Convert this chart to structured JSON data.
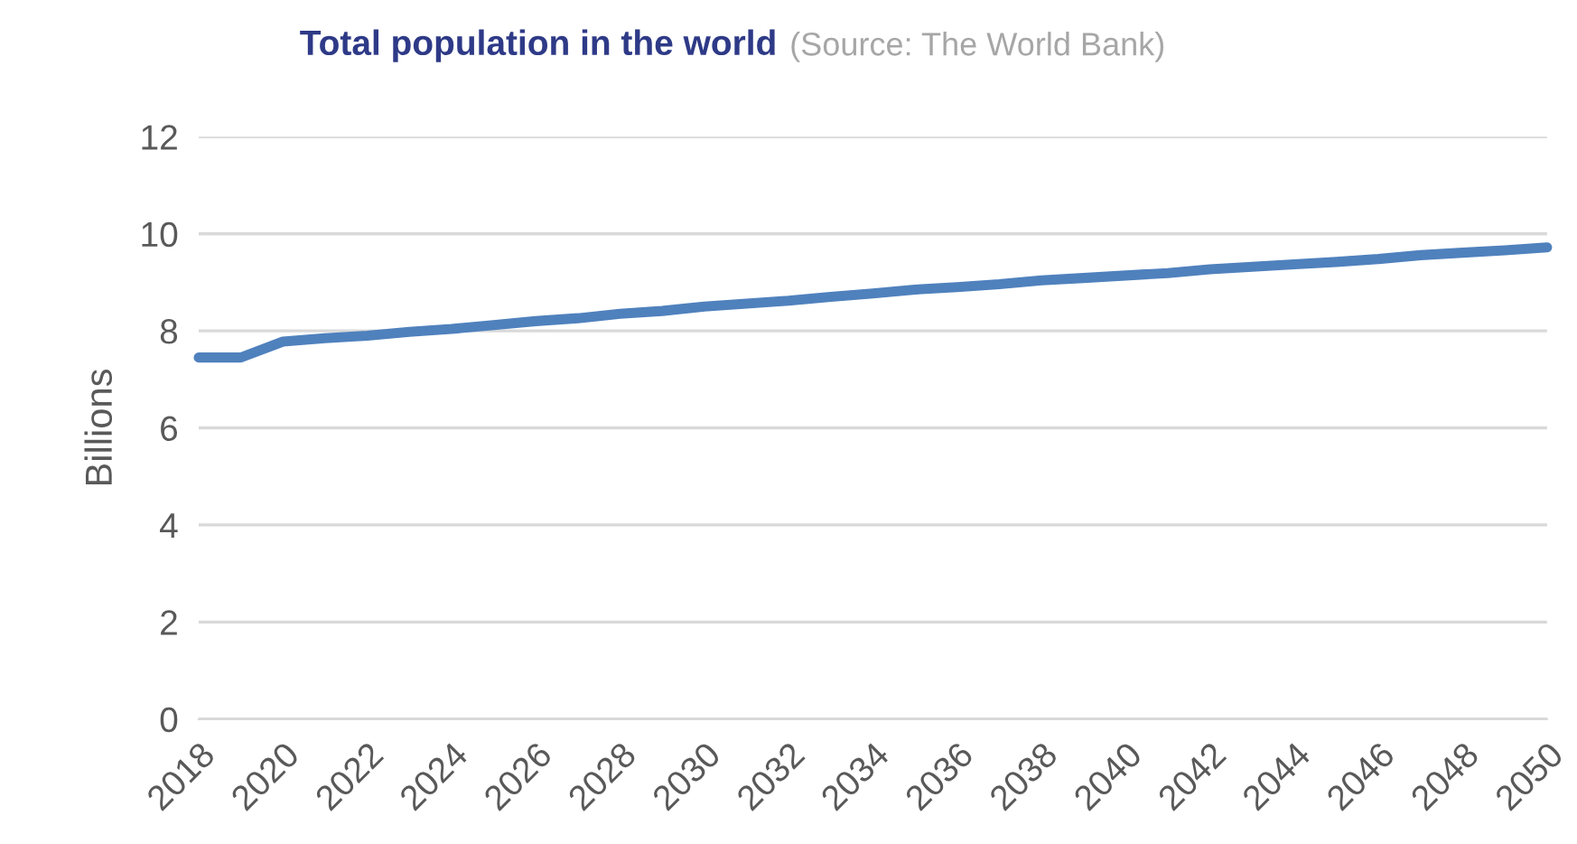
{
  "chart_data": {
    "type": "line",
    "title": "Total population in the world",
    "annotations": [
      "(Source: The World Bank)"
    ],
    "ylabel": "Billions",
    "x": [
      2018,
      2019,
      2020,
      2021,
      2022,
      2023,
      2024,
      2025,
      2026,
      2027,
      2028,
      2029,
      2030,
      2031,
      2032,
      2033,
      2034,
      2035,
      2036,
      2037,
      2038,
      2039,
      2040,
      2041,
      2042,
      2043,
      2044,
      2045,
      2046,
      2047,
      2048,
      2049,
      2050
    ],
    "series": [
      {
        "color": "#4f81bd",
        "values": [
          7.45,
          7.45,
          7.78,
          7.85,
          7.9,
          7.98,
          8.04,
          8.12,
          8.2,
          8.26,
          8.35,
          8.41,
          8.5,
          8.56,
          8.62,
          8.7,
          8.77,
          8.85,
          8.9,
          8.96,
          9.04,
          9.09,
          9.14,
          9.19,
          9.27,
          9.32,
          9.37,
          9.42,
          9.48,
          9.56,
          9.61,
          9.66,
          9.72
        ]
      }
    ],
    "xlim": [
      2018,
      2050
    ],
    "xticks": [
      2018,
      2020,
      2022,
      2024,
      2026,
      2028,
      2030,
      2032,
      2034,
      2036,
      2038,
      2040,
      2042,
      2044,
      2046,
      2048,
      2050
    ],
    "ylim": [
      0,
      12
    ],
    "yticks": [
      0,
      2,
      4,
      6,
      8,
      10,
      12
    ],
    "grid": "y",
    "legend": false,
    "marker": "none",
    "line_style": "solid"
  }
}
